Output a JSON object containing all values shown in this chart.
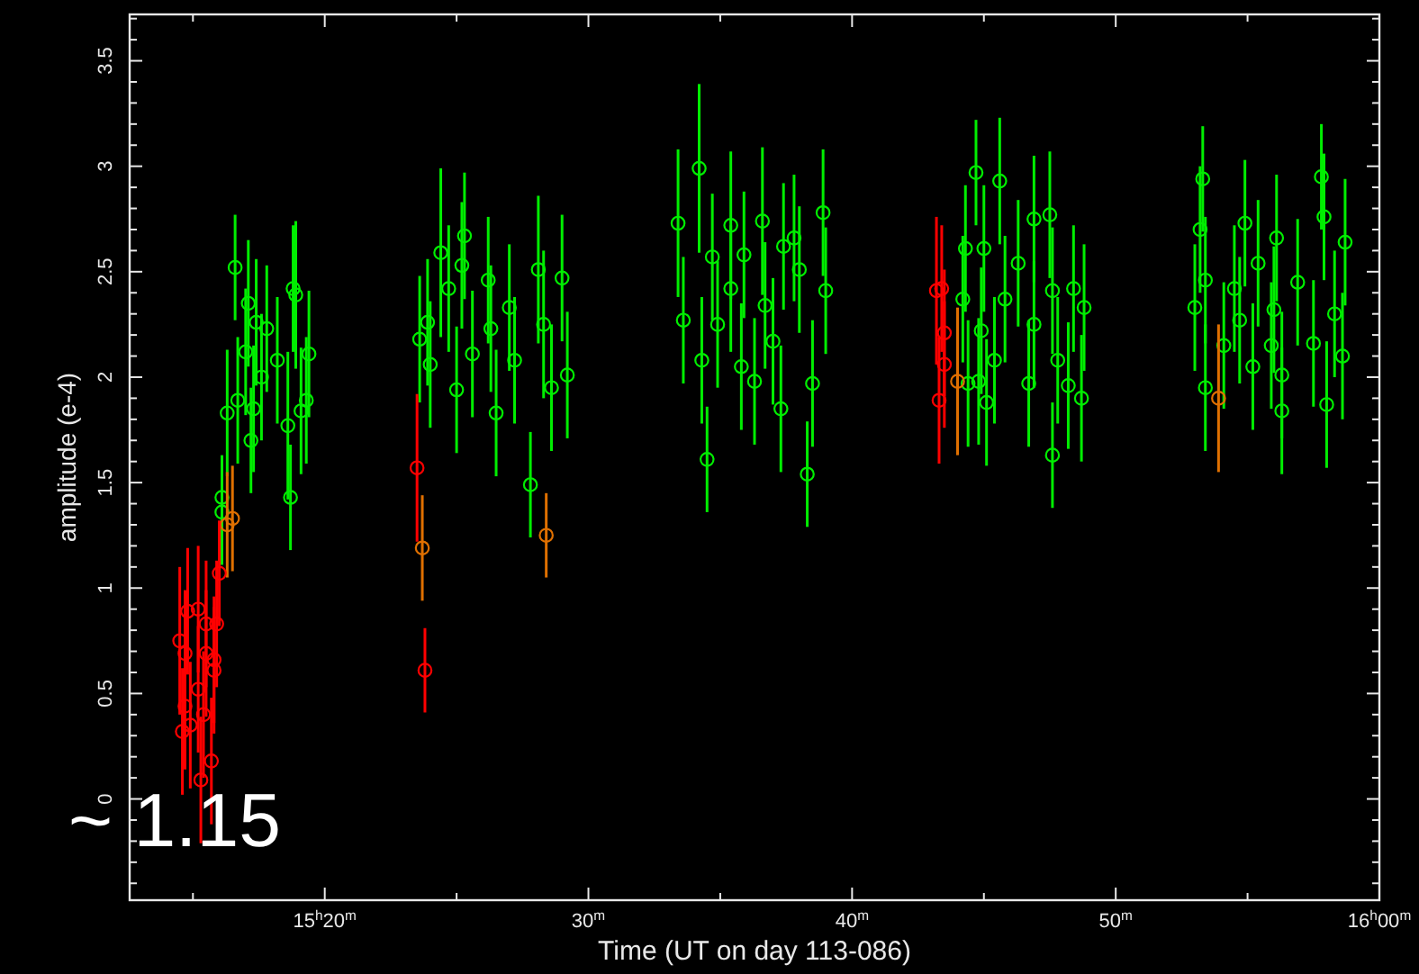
{
  "chart_data": {
    "type": "scatter",
    "xlabel": "Time (UT on day 113-086)",
    "ylabel": "amplitude (e-4)",
    "annotations": [
      "~ 1.15"
    ],
    "xlim": [
      12.6,
      60
    ],
    "xticks": [
      {
        "value": 15,
        "label": null
      },
      {
        "value": 20,
        "label": "15$^{h}$20$^{m}$"
      },
      {
        "value": 25,
        "label": null
      },
      {
        "value": 30,
        "label": "30$^{m}$"
      },
      {
        "value": 35,
        "label": null
      },
      {
        "value": 40,
        "label": "40$^{m}$"
      },
      {
        "value": 45,
        "label": null
      },
      {
        "value": 50,
        "label": "50$^{m}$"
      },
      {
        "value": 55,
        "label": null
      },
      {
        "value": 60,
        "label": "16$^{h}$00$^{m}$"
      }
    ],
    "ylim": [
      -0.48,
      3.72
    ],
    "yticks": [
      {
        "value": -0.4,
        "label": null
      },
      {
        "value": -0.3,
        "label": null
      },
      {
        "value": -0.2,
        "label": null
      },
      {
        "value": -0.1,
        "label": null
      },
      0,
      {
        "value": 0.1,
        "label": null
      },
      {
        "value": 0.2,
        "label": null
      },
      {
        "value": 0.3,
        "label": null
      },
      {
        "value": 0.4,
        "label": null
      },
      0.5,
      {
        "value": 0.6,
        "label": null
      },
      {
        "value": 0.7,
        "label": null
      },
      {
        "value": 0.8,
        "label": null
      },
      {
        "value": 0.9,
        "label": null
      },
      1,
      {
        "value": 1.1,
        "label": null
      },
      {
        "value": 1.2,
        "label": null
      },
      {
        "value": 1.3,
        "label": null
      },
      {
        "value": 1.4,
        "label": null
      },
      1.5,
      {
        "value": 1.6,
        "label": null
      },
      {
        "value": 1.7,
        "label": null
      },
      {
        "value": 1.8,
        "label": null
      },
      {
        "value": 1.9,
        "label": null
      },
      2,
      {
        "value": 2.1,
        "label": null
      },
      {
        "value": 2.2,
        "label": null
      },
      {
        "value": 2.3,
        "label": null
      },
      {
        "value": 2.4,
        "label": null
      },
      2.5,
      {
        "value": 2.6,
        "label": null
      },
      {
        "value": 2.7,
        "label": null
      },
      {
        "value": 2.8,
        "label": null
      },
      {
        "value": 2.9,
        "label": null
      },
      3,
      {
        "value": 3.1,
        "label": null
      },
      {
        "value": 3.2,
        "label": null
      },
      {
        "value": 3.3,
        "label": null
      },
      {
        "value": 3.4,
        "label": null
      },
      3.5,
      {
        "value": 3.6,
        "label": null
      },
      {
        "value": 3.7,
        "label": null
      }
    ],
    "grid": false,
    "marker": "circle",
    "series": [
      {
        "color": "#00ee00",
        "x": [
          16.6,
          17.1,
          18.8,
          18.9,
          17.0,
          19.4,
          16.3,
          17.2,
          18.7,
          16.1,
          16.1,
          19.3,
          19.1,
          18.6,
          17.4,
          17.8,
          17.6,
          18.2,
          16.7,
          17.3,
          24.4,
          25.3,
          25.2,
          26.2,
          23.9,
          23.6,
          24.0,
          27.8,
          27.0,
          28.1,
          29.0,
          28.6,
          29.2,
          25.0,
          26.5,
          25.6,
          27.2,
          28.3,
          24.7,
          26.3,
          34.2,
          33.4,
          33.6,
          34.3,
          34.5,
          35.4,
          36.6,
          37.4,
          37.8,
          38.9,
          39.0,
          38.5,
          38.3,
          37.3,
          36.3,
          35.8,
          34.7,
          35.9,
          34.9,
          37.0,
          38.0,
          35.4,
          36.7,
          44.7,
          45.6,
          44.3,
          45.0,
          46.9,
          47.5,
          44.4,
          45.1,
          44.8,
          45.4,
          46.7,
          47.6,
          48.2,
          48.7,
          48.8,
          47.6,
          45.8,
          46.3,
          44.9,
          46.9,
          47.8,
          44.2,
          48.4,
          53.3,
          53.2,
          53.4,
          53.0,
          53.4,
          54.1,
          54.7,
          54.9,
          56.1,
          57.8,
          57.9,
          58.7,
          58.6,
          58.0,
          56.3,
          55.2,
          55.9,
          56.0,
          57.5,
          58.3,
          56.9,
          55.4,
          56.3,
          54.5
        ],
        "values": [
          2.52,
          2.35,
          2.42,
          2.39,
          2.12,
          2.11,
          1.83,
          1.7,
          1.43,
          1.43,
          1.36,
          1.89,
          1.84,
          1.77,
          2.26,
          2.23,
          2.0,
          2.08,
          1.89,
          1.85,
          2.59,
          2.67,
          2.53,
          2.46,
          2.26,
          2.18,
          2.06,
          1.49,
          2.33,
          2.51,
          2.47,
          1.95,
          2.01,
          1.94,
          1.83,
          2.11,
          2.08,
          2.25,
          2.42,
          2.23,
          2.99,
          2.73,
          2.27,
          2.08,
          1.61,
          2.72,
          2.74,
          2.62,
          2.66,
          2.78,
          2.41,
          1.97,
          1.54,
          1.85,
          1.98,
          2.05,
          2.57,
          2.58,
          2.25,
          2.17,
          2.51,
          2.42,
          2.34,
          2.97,
          2.93,
          2.61,
          2.61,
          2.75,
          2.77,
          1.97,
          1.88,
          1.98,
          2.08,
          1.97,
          1.63,
          1.96,
          1.9,
          2.33,
          2.41,
          2.37,
          2.54,
          2.22,
          2.25,
          2.08,
          2.37,
          2.42,
          2.94,
          2.7,
          2.46,
          2.33,
          1.95,
          2.15,
          2.27,
          2.73,
          2.66,
          2.95,
          2.76,
          2.64,
          2.1,
          1.87,
          1.84,
          2.05,
          2.15,
          2.32,
          2.16,
          2.3,
          2.45,
          2.54,
          2.01,
          2.42
        ],
        "errors": [
          0.25,
          0.3,
          0.3,
          0.35,
          0.3,
          0.3,
          0.3,
          0.25,
          0.25,
          0.2,
          0.25,
          0.3,
          0.3,
          0.35,
          0.3,
          0.3,
          0.3,
          0.3,
          0.3,
          0.3,
          0.4,
          0.3,
          0.3,
          0.3,
          0.3,
          0.3,
          0.3,
          0.25,
          0.3,
          0.35,
          0.3,
          0.3,
          0.3,
          0.3,
          0.3,
          0.3,
          0.3,
          0.35,
          0.3,
          0.3,
          0.4,
          0.35,
          0.3,
          0.3,
          0.25,
          0.35,
          0.35,
          0.3,
          0.3,
          0.3,
          0.3,
          0.3,
          0.25,
          0.3,
          0.3,
          0.3,
          0.3,
          0.3,
          0.3,
          0.3,
          0.3,
          0.3,
          0.3,
          0.25,
          0.3,
          0.3,
          0.3,
          0.3,
          0.3,
          0.3,
          0.3,
          0.3,
          0.3,
          0.3,
          0.25,
          0.3,
          0.3,
          0.3,
          0.3,
          0.3,
          0.3,
          0.3,
          0.3,
          0.3,
          0.3,
          0.3,
          0.25,
          0.3,
          0.3,
          0.3,
          0.3,
          0.3,
          0.3,
          0.3,
          0.3,
          0.25,
          0.3,
          0.3,
          0.3,
          0.3,
          0.3,
          0.3,
          0.3,
          0.3,
          0.3,
          0.3,
          0.3,
          0.3,
          0.3,
          0.3
        ]
      },
      {
        "color": "#e07000",
        "x": [
          16.5,
          16.3,
          23.7,
          28.4,
          44.0,
          53.9
        ],
        "values": [
          1.33,
          1.3,
          1.19,
          1.25,
          1.98,
          1.9
        ],
        "errors": [
          0.25,
          0.25,
          0.25,
          0.2,
          0.35,
          0.35
        ]
      },
      {
        "color": "#ff0000",
        "x": [
          14.5,
          14.8,
          15.2,
          14.7,
          15.5,
          15.9,
          15.5,
          15.8,
          15.8,
          14.7,
          14.6,
          14.9,
          15.4,
          15.2,
          15.7,
          15.3,
          16.0,
          23.5,
          23.8,
          43.2,
          43.4,
          43.5,
          43.5,
          43.3
        ],
        "values": [
          0.75,
          0.89,
          0.9,
          0.69,
          0.83,
          0.83,
          0.69,
          0.66,
          0.61,
          0.44,
          0.32,
          0.35,
          0.4,
          0.52,
          0.18,
          0.09,
          1.07,
          1.57,
          0.61,
          2.41,
          2.42,
          2.21,
          2.06,
          1.89
        ],
        "errors": [
          0.35,
          0.3,
          0.3,
          0.3,
          0.3,
          0.3,
          0.3,
          0.3,
          0.3,
          0.3,
          0.3,
          0.3,
          0.3,
          0.3,
          0.3,
          0.3,
          0.25,
          0.35,
          0.2,
          0.35,
          0.3,
          0.3,
          0.3,
          0.3
        ]
      }
    ]
  }
}
